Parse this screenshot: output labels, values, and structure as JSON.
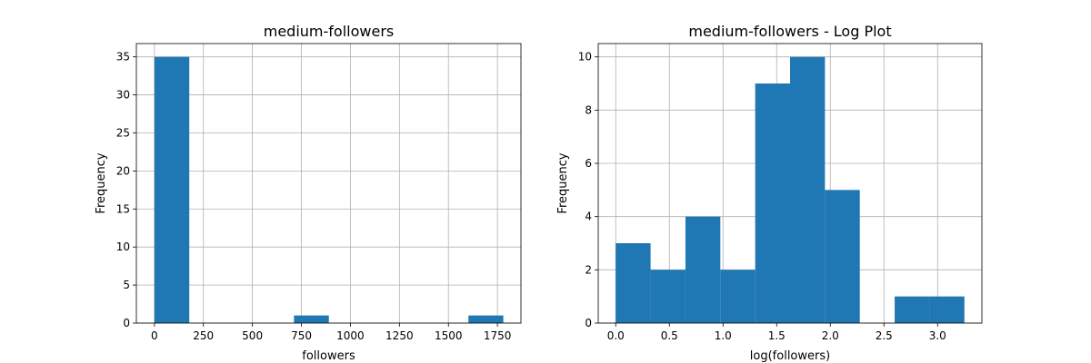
{
  "chart_data": [
    {
      "type": "bar",
      "title": "medium-followers",
      "xlabel": "followers",
      "ylabel": "Frequency",
      "xlim": [
        -92,
        1870
      ],
      "ylim": [
        0,
        36.75
      ],
      "xticks": [
        0,
        250,
        500,
        750,
        1000,
        1250,
        1500,
        1750
      ],
      "xtick_labels": [
        "0",
        "250",
        "500",
        "750",
        "1000",
        "1250",
        "1500",
        "1750"
      ],
      "yticks": [
        0,
        5,
        10,
        15,
        20,
        25,
        30,
        35
      ],
      "ytick_labels": [
        "0",
        "5",
        "10",
        "15",
        "20",
        "25",
        "30",
        "35"
      ],
      "grid": true,
      "bar_color": "#1f77b4",
      "bins": [
        {
          "x0": 0,
          "x1": 178,
          "count": 35
        },
        {
          "x0": 178,
          "x1": 356,
          "count": 0
        },
        {
          "x0": 356,
          "x1": 534,
          "count": 0
        },
        {
          "x0": 534,
          "x1": 712,
          "count": 0
        },
        {
          "x0": 712,
          "x1": 890,
          "count": 1
        },
        {
          "x0": 890,
          "x1": 1068,
          "count": 0
        },
        {
          "x0": 1068,
          "x1": 1246,
          "count": 0
        },
        {
          "x0": 1246,
          "x1": 1424,
          "count": 0
        },
        {
          "x0": 1424,
          "x1": 1602,
          "count": 0
        },
        {
          "x0": 1602,
          "x1": 1780,
          "count": 1
        }
      ]
    },
    {
      "type": "bar",
      "title": "medium-followers - Log Plot",
      "xlabel": "log(followers)",
      "ylabel": "Frequency",
      "xlim": [
        -0.163,
        3.413
      ],
      "ylim": [
        0,
        10.5
      ],
      "xticks": [
        0.0,
        0.5,
        1.0,
        1.5,
        2.0,
        2.5,
        3.0
      ],
      "xtick_labels": [
        "0.0",
        "0.5",
        "1.0",
        "1.5",
        "2.0",
        "2.5",
        "3.0"
      ],
      "yticks": [
        0,
        2,
        4,
        6,
        8,
        10
      ],
      "ytick_labels": [
        "0",
        "2",
        "4",
        "6",
        "8",
        "10"
      ],
      "grid": true,
      "bar_color": "#1f77b4",
      "bins": [
        {
          "x0": 0.0,
          "x1": 0.325,
          "count": 3
        },
        {
          "x0": 0.325,
          "x1": 0.65,
          "count": 2
        },
        {
          "x0": 0.65,
          "x1": 0.975,
          "count": 4
        },
        {
          "x0": 0.975,
          "x1": 1.3,
          "count": 2
        },
        {
          "x0": 1.3,
          "x1": 1.625,
          "count": 9
        },
        {
          "x0": 1.625,
          "x1": 1.95,
          "count": 10
        },
        {
          "x0": 1.95,
          "x1": 2.275,
          "count": 5
        },
        {
          "x0": 2.275,
          "x1": 2.6,
          "count": 0
        },
        {
          "x0": 2.6,
          "x1": 2.925,
          "count": 1
        },
        {
          "x0": 2.925,
          "x1": 3.25,
          "count": 1
        }
      ]
    }
  ]
}
